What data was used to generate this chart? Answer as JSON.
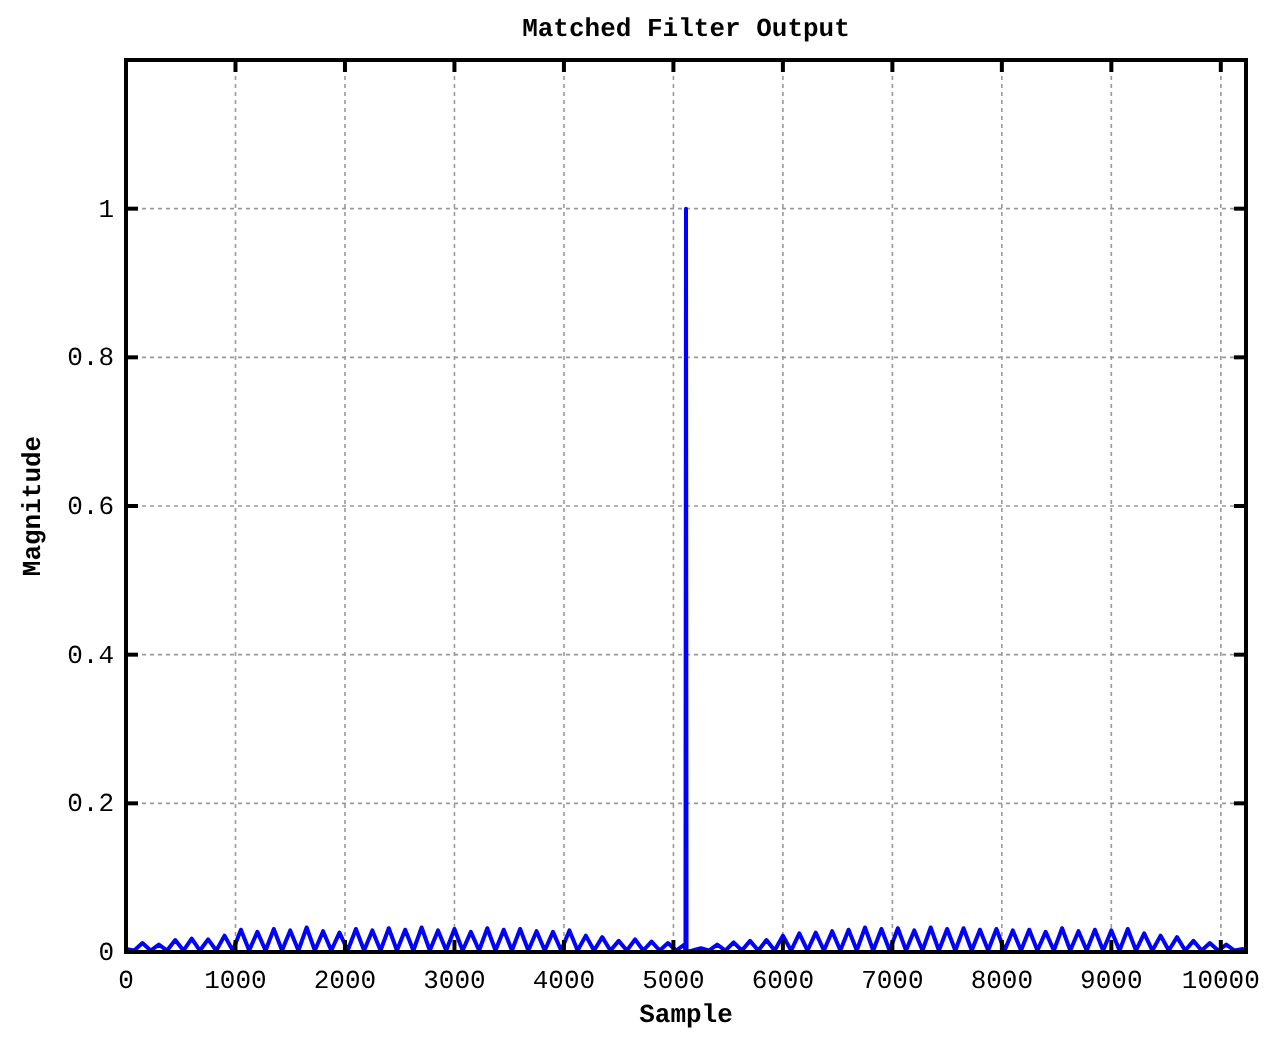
{
  "chart_data": {
    "type": "line",
    "title": "Matched Filter Output",
    "xlabel": "Sample",
    "ylabel": "Magnitude",
    "xlim": [
      0,
      10230
    ],
    "ylim": [
      0,
      1.2
    ],
    "xticks": [
      0,
      1000,
      2000,
      3000,
      4000,
      5000,
      6000,
      7000,
      8000,
      9000,
      10000
    ],
    "yticks": [
      0,
      0.2,
      0.4,
      0.6,
      0.8,
      1
    ],
    "grid": true,
    "series": [
      {
        "color": "#0000ff",
        "x": [
          0,
          75,
          150,
          225,
          300,
          375,
          450,
          525,
          600,
          675,
          750,
          825,
          900,
          975,
          1050,
          1125,
          1200,
          1275,
          1350,
          1425,
          1500,
          1575,
          1650,
          1725,
          1800,
          1875,
          1950,
          2025,
          2100,
          2175,
          2250,
          2325,
          2400,
          2475,
          2550,
          2625,
          2700,
          2775,
          2850,
          2925,
          3000,
          3075,
          3150,
          3225,
          3300,
          3375,
          3450,
          3525,
          3600,
          3675,
          3750,
          3825,
          3900,
          3975,
          4050,
          4125,
          4200,
          4275,
          4350,
          4425,
          4500,
          4575,
          4650,
          4725,
          4800,
          4875,
          4950,
          5025,
          5100,
          5110,
          5115,
          5120,
          5175,
          5250,
          5325,
          5400,
          5475,
          5550,
          5625,
          5700,
          5775,
          5850,
          5925,
          6000,
          6075,
          6150,
          6225,
          6300,
          6375,
          6450,
          6525,
          6600,
          6675,
          6750,
          6825,
          6900,
          6975,
          7050,
          7125,
          7200,
          7275,
          7350,
          7425,
          7500,
          7575,
          7650,
          7725,
          7800,
          7875,
          7950,
          8025,
          8100,
          8175,
          8250,
          8325,
          8400,
          8475,
          8550,
          8625,
          8700,
          8775,
          8850,
          8925,
          9000,
          9075,
          9150,
          9225,
          9300,
          9375,
          9450,
          9525,
          9600,
          9675,
          9750,
          9825,
          9900,
          9975,
          10050,
          10125,
          10200
        ],
        "values": [
          0.004,
          0.002,
          0.012,
          0.002,
          0.01,
          0.002,
          0.016,
          0.002,
          0.018,
          0.002,
          0.017,
          0.002,
          0.022,
          0.002,
          0.03,
          0.002,
          0.027,
          0.002,
          0.031,
          0.002,
          0.029,
          0.002,
          0.033,
          0.002,
          0.028,
          0.002,
          0.026,
          0.002,
          0.031,
          0.002,
          0.029,
          0.002,
          0.032,
          0.002,
          0.03,
          0.002,
          0.033,
          0.002,
          0.029,
          0.002,
          0.031,
          0.002,
          0.027,
          0.002,
          0.032,
          0.002,
          0.03,
          0.002,
          0.031,
          0.002,
          0.028,
          0.002,
          0.027,
          0.002,
          0.029,
          0.002,
          0.022,
          0.002,
          0.02,
          0.002,
          0.015,
          0.002,
          0.017,
          0.002,
          0.014,
          0.002,
          0.012,
          0.002,
          0.01,
          0.002,
          1,
          0,
          0.002,
          0.005,
          0.002,
          0.01,
          0.002,
          0.013,
          0.002,
          0.015,
          0.002,
          0.016,
          0.002,
          0.022,
          0.002,
          0.025,
          0.002,
          0.026,
          0.002,
          0.028,
          0.002,
          0.03,
          0.002,
          0.033,
          0.002,
          0.031,
          0.002,
          0.032,
          0.002,
          0.029,
          0.002,
          0.033,
          0.002,
          0.031,
          0.002,
          0.032,
          0.002,
          0.03,
          0.002,
          0.031,
          0.002,
          0.029,
          0.002,
          0.03,
          0.002,
          0.027,
          0.002,
          0.032,
          0.002,
          0.028,
          0.002,
          0.03,
          0.002,
          0.029,
          0.002,
          0.031,
          0.002,
          0.025,
          0.002,
          0.022,
          0.002,
          0.02,
          0.002,
          0.015,
          0.002,
          0.012,
          0.002,
          0.01,
          0.002,
          0.004
        ]
      }
    ]
  }
}
